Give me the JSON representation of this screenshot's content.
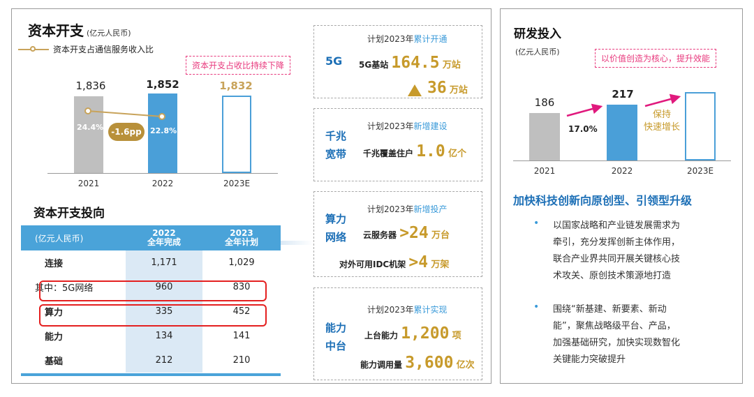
{
  "capex": {
    "title": "资本开支",
    "unit": "(亿元人民币)",
    "legend": "资本开支占通信服务收入比",
    "callout": "资本开支占收比持续下降",
    "bars": [
      {
        "year": "2021",
        "value": "1,836",
        "pct": "24.4%"
      },
      {
        "year": "2022",
        "value": "1,852",
        "pct": "22.8%"
      },
      {
        "year": "2023E",
        "value": "1,832"
      }
    ],
    "change": "-1.6pp",
    "colors": {
      "grey": "#bfbfbf",
      "blue": "#4a9fd8",
      "gold": "#c8a35a",
      "pink": "#e8397d"
    }
  },
  "capex_direction": {
    "title": "资本开支投向",
    "header": {
      "unit": "(亿元人民币)",
      "col1a": "2022",
      "col1b": "全年完成",
      "col2a": "2023",
      "col2b": "全年计划"
    },
    "rows": [
      {
        "name": "连接",
        "v2022": "1,171",
        "v2023": "1,029"
      },
      {
        "name": "其中：5G网络",
        "v2022": "960",
        "v2023": "830"
      },
      {
        "name": "算力",
        "v2022": "335",
        "v2023": "452"
      },
      {
        "name": "能力",
        "v2022": "134",
        "v2023": "141"
      },
      {
        "name": "基础",
        "v2022": "212",
        "v2023": "210"
      }
    ]
  },
  "cards": {
    "c5g": {
      "cat": "5G",
      "plan_a": "计划2023年",
      "plan_b": "累计开通",
      "m1_label": "5G基站",
      "m1_value": "164.5",
      "m1_unit": "万站",
      "m2_value": "36",
      "m2_unit": "万站"
    },
    "broadband": {
      "cat1": "千兆",
      "cat2": "宽带",
      "plan_a": "计划2023年",
      "plan_b": "新增建设",
      "m1_label": "千兆覆盖住户",
      "m1_value": "1.0",
      "m1_unit": "亿个"
    },
    "compute": {
      "cat1": "算力",
      "cat2": "网络",
      "plan_a": "计划2023年",
      "plan_b": "新增投产",
      "m1_label": "云服务器",
      "m1_value": ">24",
      "m1_unit": "万台",
      "m2_label": "对外可用IDC机架",
      "m2_value": ">4",
      "m2_unit": "万架"
    },
    "capability": {
      "cat1": "能力",
      "cat2": "中台",
      "plan_a": "计划2023年",
      "plan_b": "累计实现",
      "m1_label": "上台能力",
      "m1_value": "1,200",
      "m1_unit": "项",
      "m2_label": "能力调用量",
      "m2_value": "3,600",
      "m2_unit": "亿次"
    }
  },
  "rd": {
    "title": "研发投入",
    "unit": "(亿元人民币)",
    "callout": "以价值创造为核心，提升效能",
    "bars": [
      {
        "year": "2021",
        "value": "186"
      },
      {
        "year": "2022",
        "value": "217"
      },
      {
        "year": "2023E",
        "value": ""
      }
    ],
    "growth": "17.0%",
    "keep_1": "保持",
    "keep_2": "快速增长",
    "heading": "加快科技创新向原创型、引领型升级",
    "bullet1": [
      "以国家战略和产业链发展需求为",
      "牵引，充分发挥创新主体作用，",
      "联合产业界共同开展关键核心技",
      "术攻关、原创技术策源地打造"
    ],
    "bullet2": [
      "围绕“新基建、新要素、新动",
      "能”，聚焦战略级平台、产品，",
      "加强基础研究，加快实现数智化",
      "关键能力突破提升"
    ]
  }
}
